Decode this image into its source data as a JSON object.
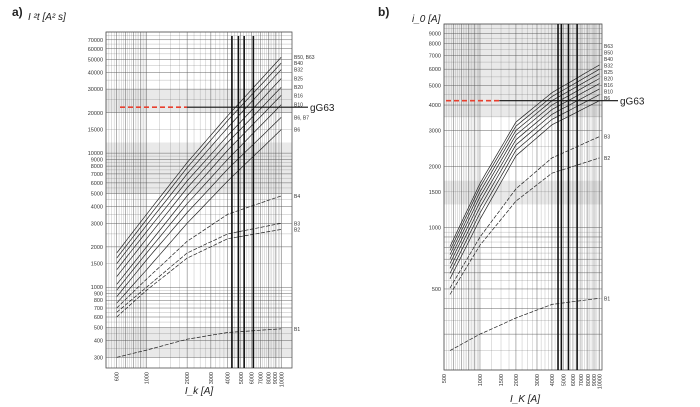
{
  "chart_data": [
    {
      "panel": "a)",
      "type": "line",
      "ylabel": "I ²t [A² s]",
      "xlabel": "I_k [A]",
      "x_scale": "log",
      "y_scale": "log",
      "xlim": [
        500,
        12000
      ],
      "ylim": [
        250,
        80000
      ],
      "grid": true,
      "x_ticks": [
        "600",
        "1000",
        "2000",
        "3000",
        "4000",
        "5000",
        "6000",
        "7000",
        "8000",
        "9000",
        "10000"
      ],
      "y_ticks": [
        "300",
        "400",
        "500",
        "600",
        "700",
        "800",
        "900",
        "1000",
        "1500",
        "2000",
        "3000",
        "4000",
        "5000",
        "6000",
        "7000",
        "8000",
        "9000",
        "10000",
        "15000",
        "20000",
        "30000",
        "40000",
        "50000",
        "60000",
        "70000"
      ],
      "reference_label": "gG63",
      "reference_y": 22000,
      "reference_x_end": 6000,
      "dashed_level_y": 22000,
      "vertical_markers_x": [
        4300,
        4800,
        5300,
        6200
      ],
      "series": [
        {
          "name": "B50, B63",
          "x": [
            600,
            1000,
            2000,
            4000,
            10000
          ],
          "y": [
            1800,
            3500,
            8500,
            19000,
            52000
          ]
        },
        {
          "name": "B40",
          "x": [
            600,
            1000,
            2000,
            4000,
            10000
          ],
          "y": [
            1650,
            3200,
            7800,
            17500,
            47000
          ]
        },
        {
          "name": "B32",
          "x": [
            600,
            1000,
            2000,
            4000,
            10000
          ],
          "y": [
            1500,
            2900,
            7000,
            15500,
            42000
          ]
        },
        {
          "name": "B25",
          "x": [
            600,
            1000,
            2000,
            4000,
            10000
          ],
          "y": [
            1350,
            2600,
            6200,
            13500,
            36000
          ]
        },
        {
          "name": "B20",
          "x": [
            600,
            1000,
            2000,
            4000,
            10000
          ],
          "y": [
            1200,
            2300,
            5500,
            12000,
            31000
          ]
        },
        {
          "name": "B16",
          "x": [
            600,
            1000,
            2000,
            4000,
            10000
          ],
          "y": [
            1050,
            2000,
            4800,
            10500,
            27000
          ]
        },
        {
          "name": "B10",
          "x": [
            600,
            1000,
            2000,
            4000,
            10000
          ],
          "y": [
            950,
            1800,
            4200,
            9000,
            23000
          ]
        },
        {
          "name": "B6, B7",
          "x": [
            600,
            1000,
            2000,
            4000,
            10000
          ],
          "y": [
            850,
            1600,
            3600,
            7600,
            18500
          ]
        },
        {
          "name": "B6",
          "x": [
            600,
            1000,
            2000,
            4000,
            10000
          ],
          "y": [
            760,
            1350,
            3000,
            6200,
            15000
          ]
        },
        {
          "name": "B4",
          "x": [
            600,
            1000,
            2000,
            4000,
            10000
          ],
          "y": [
            700,
            1150,
            2200,
            3500,
            4800
          ]
        },
        {
          "name": "B3",
          "x": [
            600,
            1000,
            2000,
            4000,
            10000
          ],
          "y": [
            650,
            1000,
            1800,
            2500,
            3000
          ]
        },
        {
          "name": "B2",
          "x": [
            600,
            1000,
            2000,
            4000,
            10000
          ],
          "y": [
            600,
            950,
            1650,
            2300,
            2700
          ]
        },
        {
          "name": "B1",
          "x": [
            600,
            1000,
            2000,
            4000,
            10000
          ],
          "y": [
            300,
            340,
            410,
            460,
            490
          ]
        }
      ],
      "curve_labels": [
        "B50, B63",
        "B40",
        "B32",
        "B25",
        "B20",
        "B16",
        "B10",
        "B6, B7",
        "B6",
        "B4",
        "B3",
        "B2",
        "B1"
      ]
    },
    {
      "panel": "b)",
      "type": "line",
      "ylabel": "i_0 [A]",
      "xlabel": "I_K [A]",
      "x_scale": "log",
      "y_scale": "log",
      "xlim": [
        500,
        10500
      ],
      "ylim": [
        200,
        10000
      ],
      "grid": true,
      "x_ticks": [
        "500",
        "1000",
        "1500",
        "2000",
        "3000",
        "4000",
        "5000",
        "6000",
        "7000",
        "8000",
        "9000",
        "10000"
      ],
      "y_ticks": [
        "500",
        "1000",
        "1500",
        "2000",
        "3000",
        "4000",
        "5000",
        "6000",
        "7000",
        "8000",
        "9000"
      ],
      "reference_label": "gG63",
      "reference_y": 4200,
      "reference_x_end": 6000,
      "dashed_level_y": 4200,
      "vertical_markers_x": [
        4500,
        4800,
        5500,
        6500
      ],
      "series": [
        {
          "name": "B50",
          "x": [
            500,
            1000,
            2000,
            4000,
            10000
          ],
          "y": [
            700,
            1650,
            3300,
            4600,
            6300
          ]
        },
        {
          "name": "B40",
          "x": [
            500,
            1000,
            2000,
            4000,
            10000
          ],
          "y": [
            670,
            1580,
            3150,
            4400,
            6000
          ]
        },
        {
          "name": "B32",
          "x": [
            500,
            1000,
            2000,
            4000,
            10000
          ],
          "y": [
            640,
            1500,
            3000,
            4200,
            5700
          ]
        },
        {
          "name": "B25",
          "x": [
            500,
            1000,
            2000,
            4000,
            10000
          ],
          "y": [
            610,
            1420,
            2850,
            4000,
            5400
          ]
        },
        {
          "name": "B20",
          "x": [
            500,
            1000,
            2000,
            4000,
            10000
          ],
          "y": [
            580,
            1340,
            2700,
            3800,
            5100
          ]
        },
        {
          "name": "B16",
          "x": [
            500,
            1000,
            2000,
            4000,
            10000
          ],
          "y": [
            550,
            1260,
            2550,
            3600,
            4800
          ]
        },
        {
          "name": "B10",
          "x": [
            500,
            1000,
            2000,
            4000,
            10000
          ],
          "y": [
            520,
            1180,
            2400,
            3400,
            4500
          ]
        },
        {
          "name": "B6",
          "x": [
            500,
            1000,
            2000,
            4000,
            10000
          ],
          "y": [
            490,
            1100,
            2250,
            3200,
            4200
          ]
        },
        {
          "name": "B3",
          "x": [
            500,
            1000,
            2000,
            4000,
            10000
          ],
          "y": [
            450,
            900,
            1550,
            2200,
            2800
          ]
        },
        {
          "name": "B2",
          "x": [
            500,
            1000,
            2000,
            4000,
            10000
          ],
          "y": [
            420,
            820,
            1350,
            1850,
            2200
          ]
        },
        {
          "name": "B1",
          "x": [
            500,
            1000,
            2000,
            4000,
            10000
          ],
          "y": [
            240,
            300,
            360,
            420,
            450
          ]
        }
      ],
      "curve_labels": [
        "B63",
        "B50",
        "B40",
        "B32",
        "B25",
        "B20",
        "B16",
        "B10",
        "B6",
        "B3",
        "B2",
        "B1"
      ]
    }
  ],
  "colors": {
    "curve": "#222222",
    "grid": "#555555",
    "grid_band": "#cfcfcf",
    "dashed": "#e8402f",
    "reference": "#111111"
  }
}
